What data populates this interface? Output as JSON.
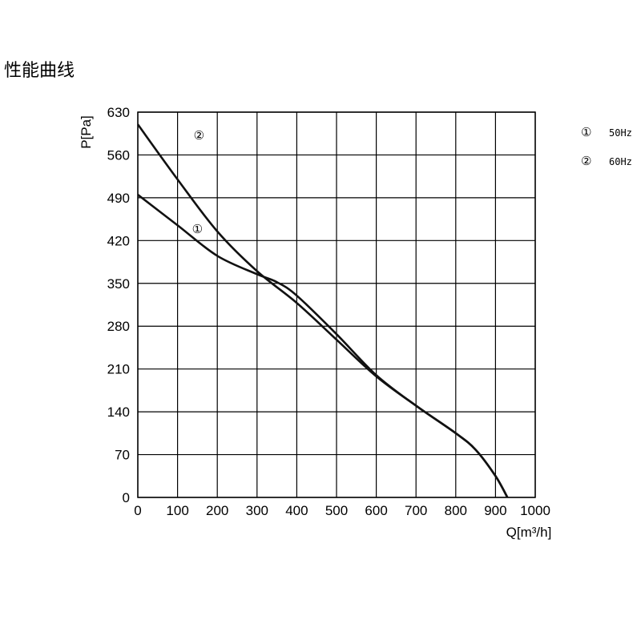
{
  "chart_data": {
    "type": "line",
    "title": "性能曲线",
    "x_label": "Q[m³/h]",
    "y_label": "P[Pa]",
    "xlim": [
      0,
      1000
    ],
    "xticks": [
      0,
      100,
      200,
      300,
      400,
      500,
      600,
      700,
      800,
      900,
      1000
    ],
    "ylim": [
      0,
      630
    ],
    "yticks": [
      0,
      70,
      140,
      210,
      280,
      350,
      420,
      490,
      560,
      630
    ],
    "grid": true,
    "series": [
      {
        "name": "50Hz",
        "label": "①",
        "color": "#111111",
        "x": [
          0,
          100,
          200,
          300,
          350,
          400,
          500,
          600,
          700,
          800,
          850,
          900,
          930
        ],
        "values": [
          495,
          445,
          395,
          365,
          352,
          330,
          267,
          200,
          150,
          105,
          78,
          35,
          0
        ]
      },
      {
        "name": "60Hz",
        "label": "②",
        "color": "#111111",
        "x": [
          0,
          100,
          200,
          300,
          400,
          500,
          600,
          700,
          800,
          850,
          900,
          930
        ],
        "values": [
          610,
          520,
          435,
          370,
          318,
          258,
          198,
          150,
          105,
          78,
          35,
          0
        ]
      }
    ]
  }
}
